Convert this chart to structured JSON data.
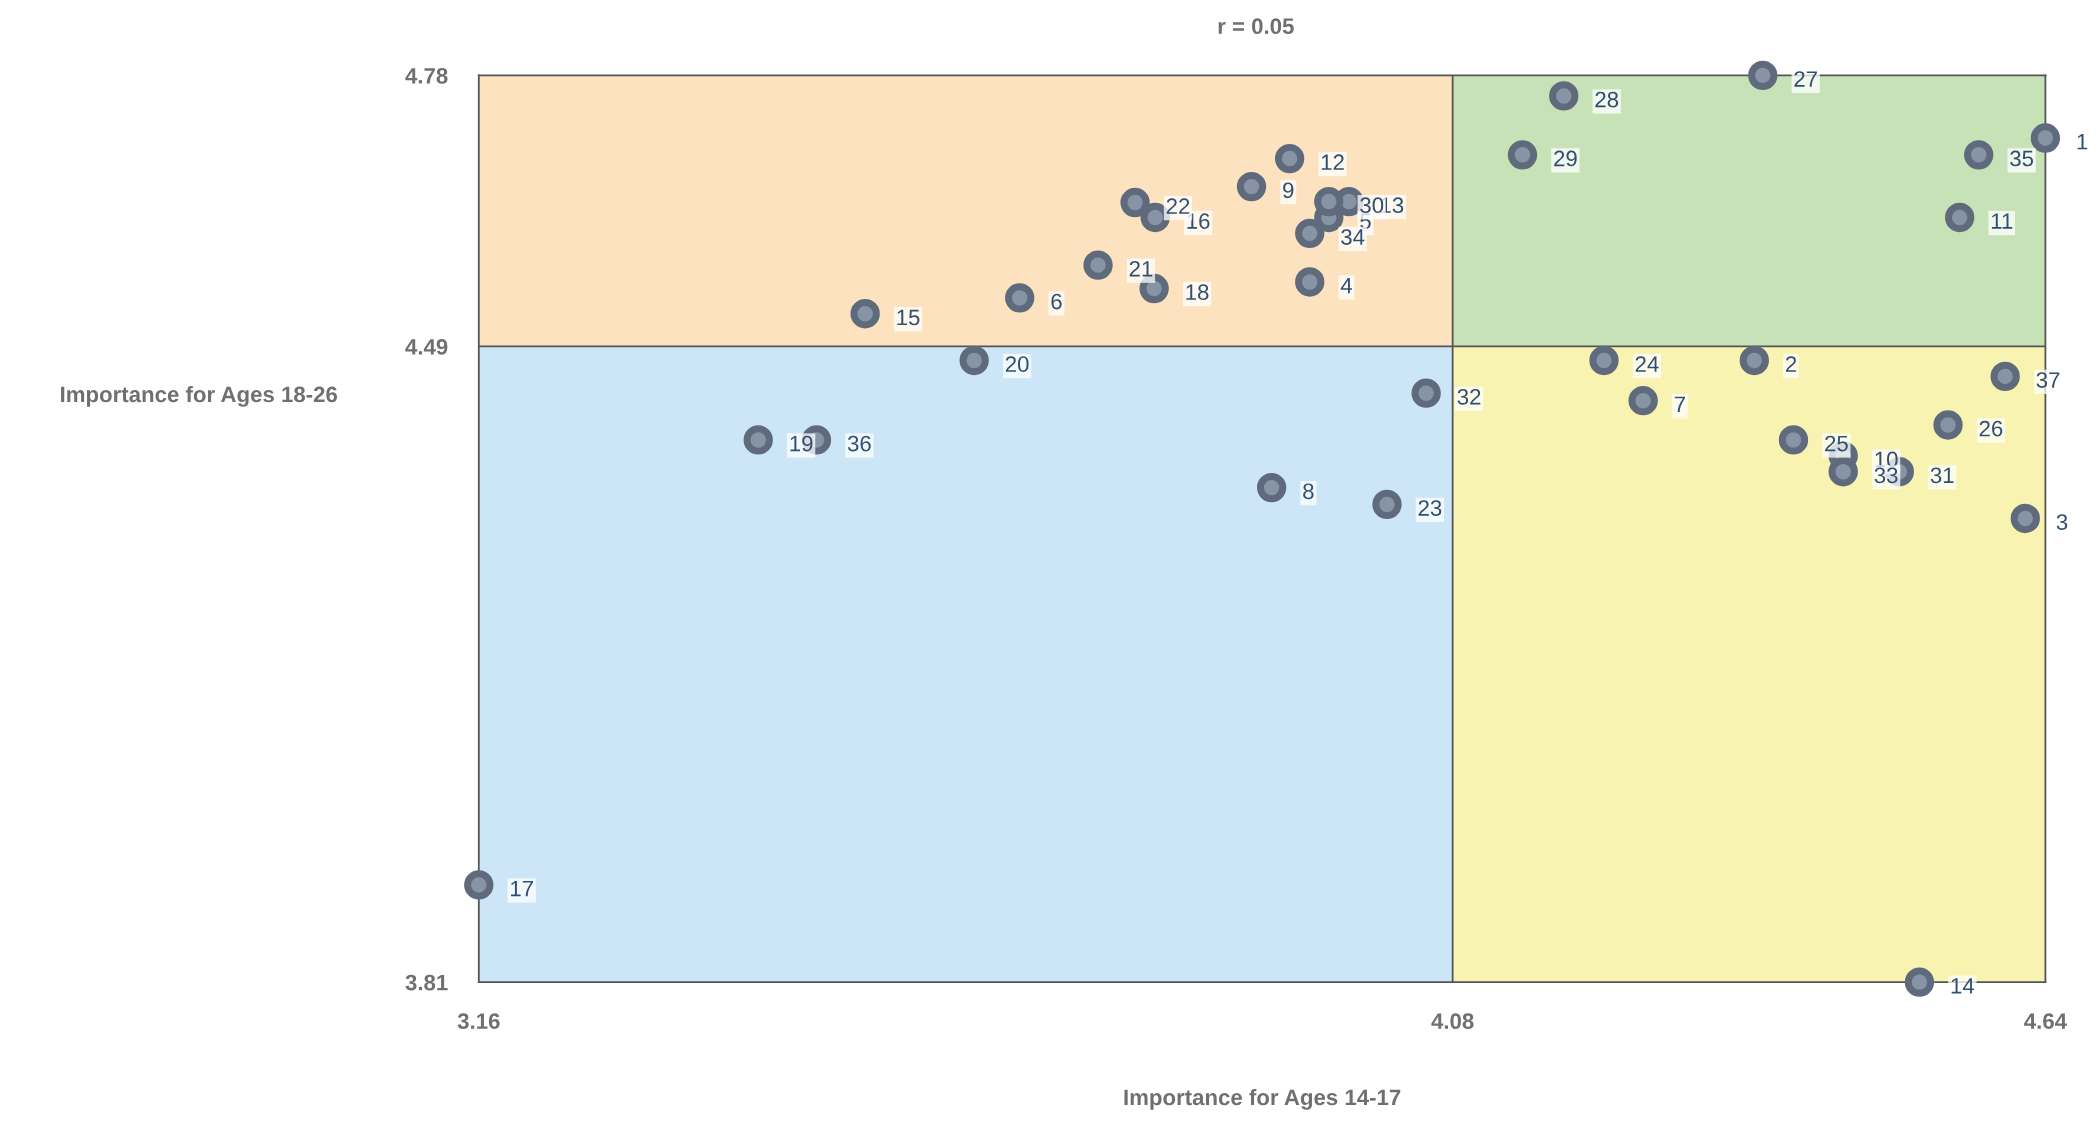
{
  "chart_data": {
    "type": "scatter",
    "title": "r = 0.05",
    "xlabel": "Importance for Ages 14-17",
    "ylabel": "Importance for Ages 18-26",
    "xlim": [
      3.16,
      4.64
    ],
    "ylim": [
      3.81,
      4.78
    ],
    "xticks": [
      3.16,
      4.08,
      4.64
    ],
    "yticks": [
      3.81,
      4.49,
      4.78
    ],
    "grid": false,
    "marker": "circle",
    "series": [
      {
        "color": "#5f6b7d",
        "x": [
          4.64,
          4.365,
          4.621,
          3.945,
          3.963,
          3.671,
          4.26,
          3.909,
          3.89,
          4.449,
          4.559,
          3.926,
          3.982,
          4.521,
          3.525,
          3.799,
          3.16,
          3.798,
          3.424,
          3.628,
          3.745,
          3.78,
          4.018,
          4.223,
          4.402,
          4.548,
          4.373,
          4.185,
          4.146,
          3.963,
          4.502,
          4.055,
          4.449,
          3.945,
          4.577,
          3.479,
          4.602
        ],
        "values": [
          4.713,
          4.475,
          4.306,
          4.559,
          4.628,
          4.542,
          4.432,
          4.339,
          4.661,
          4.373,
          4.628,
          4.691,
          4.645,
          3.81,
          4.525,
          4.628,
          3.914,
          4.552,
          4.39,
          4.475,
          4.577,
          4.644,
          4.321,
          4.475,
          4.39,
          4.406,
          4.78,
          4.758,
          4.695,
          4.645,
          4.356,
          4.44,
          4.356,
          4.611,
          4.695,
          4.39,
          4.458
        ]
      }
    ],
    "ref_lines": [
      {
        "axis": "x",
        "value": 4.08,
        "color": "#555555"
      },
      {
        "axis": "y",
        "value": 4.49,
        "color": "#555555"
      }
    ],
    "annotations": [
      {
        "text": "1",
        "x": 4.64,
        "y": 4.713
      },
      {
        "text": "2",
        "x": 4.365,
        "y": 4.475
      },
      {
        "text": "3",
        "x": 4.621,
        "y": 4.306
      },
      {
        "text": "4",
        "x": 3.945,
        "y": 4.559
      },
      {
        "text": "5",
        "x": 3.963,
        "y": 4.628
      },
      {
        "text": "6",
        "x": 3.671,
        "y": 4.542
      },
      {
        "text": "7",
        "x": 4.26,
        "y": 4.432
      },
      {
        "text": "8",
        "x": 3.909,
        "y": 4.339
      },
      {
        "text": "9",
        "x": 3.89,
        "y": 4.661
      },
      {
        "text": "10",
        "x": 4.449,
        "y": 4.373
      },
      {
        "text": "11",
        "x": 4.559,
        "y": 4.628
      },
      {
        "text": "12",
        "x": 3.926,
        "y": 4.691
      },
      {
        "text": "13",
        "x": 3.982,
        "y": 4.645
      },
      {
        "text": "14",
        "x": 4.521,
        "y": 3.81
      },
      {
        "text": "15",
        "x": 3.525,
        "y": 4.525
      },
      {
        "text": "16",
        "x": 3.799,
        "y": 4.628
      },
      {
        "text": "17",
        "x": 3.16,
        "y": 3.914
      },
      {
        "text": "18",
        "x": 3.798,
        "y": 4.552
      },
      {
        "text": "19",
        "x": 3.424,
        "y": 4.39
      },
      {
        "text": "20",
        "x": 3.628,
        "y": 4.475
      },
      {
        "text": "21",
        "x": 3.745,
        "y": 4.577
      },
      {
        "text": "22",
        "x": 3.78,
        "y": 4.644
      },
      {
        "text": "23",
        "x": 4.018,
        "y": 4.321
      },
      {
        "text": "24",
        "x": 4.223,
        "y": 4.475
      },
      {
        "text": "25",
        "x": 4.402,
        "y": 4.39
      },
      {
        "text": "26",
        "x": 4.548,
        "y": 4.406
      },
      {
        "text": "27",
        "x": 4.373,
        "y": 4.78
      },
      {
        "text": "28",
        "x": 4.185,
        "y": 4.758
      },
      {
        "text": "29",
        "x": 4.146,
        "y": 4.695
      },
      {
        "text": "30",
        "x": 3.963,
        "y": 4.645
      },
      {
        "text": "31",
        "x": 4.502,
        "y": 4.356
      },
      {
        "text": "32",
        "x": 4.055,
        "y": 4.44
      },
      {
        "text": "33",
        "x": 4.449,
        "y": 4.356
      },
      {
        "text": "34",
        "x": 3.945,
        "y": 4.611
      },
      {
        "text": "35",
        "x": 4.577,
        "y": 4.695
      },
      {
        "text": "36",
        "x": 3.479,
        "y": 4.39
      },
      {
        "text": "37",
        "x": 4.602,
        "y": 4.458
      }
    ]
  }
}
